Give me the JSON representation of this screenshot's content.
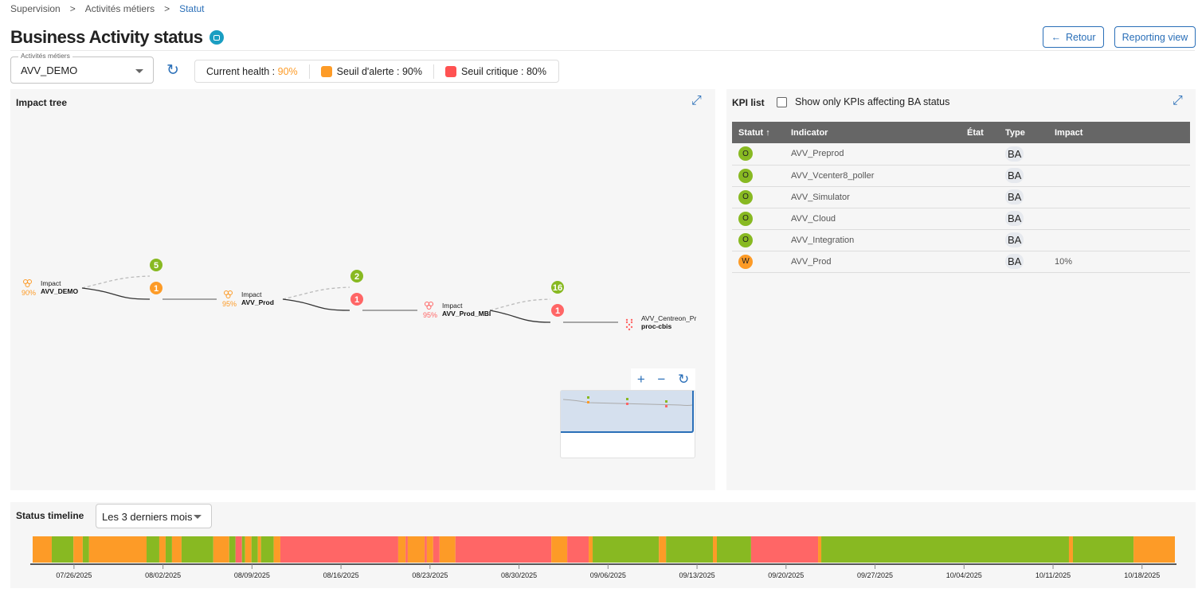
{
  "breadcrumb": [
    "Supervision",
    "Activités métiers",
    "Statut"
  ],
  "page_title": "Business Activity status",
  "buttons": {
    "back": "Retour",
    "reporting": "Reporting view"
  },
  "selector": {
    "label": "Activités métiers",
    "value": "AVV_DEMO"
  },
  "health": {
    "current_label": "Current health : ",
    "current_value": "90%",
    "warning": "Seuil d'alerte : 90%",
    "critical": "Seuil critique : 80%"
  },
  "colors": {
    "ok": "#88b922",
    "warning": "#fd9b27",
    "critical": "#ff6666",
    "accent": "#2a6fb8",
    "health_value": "#fd9b27"
  },
  "impact_tree": {
    "title": "Impact tree",
    "nodes": [
      {
        "type": "Impact",
        "name": "AVV_DEMO",
        "pct": "90%",
        "status": "warning",
        "ok_count": "5",
        "problem_count": "1",
        "problem_status": "warning"
      },
      {
        "type": "Impact",
        "name": "AVV_Prod",
        "pct": "95%",
        "status": "warning",
        "ok_count": "2",
        "problem_count": "1",
        "problem_status": "critical"
      },
      {
        "type": "Impact",
        "name": "AVV_Prod_MBI",
        "pct": "95%",
        "status": "critical",
        "ok_count": "16",
        "problem_count": "1",
        "problem_status": "critical"
      },
      {
        "type": "AVV_Centreon_Pr",
        "name": "proc-cbis",
        "status": "critical"
      }
    ],
    "controls": {
      "zoom_in": "+",
      "zoom_out": "−",
      "reset": "↻"
    }
  },
  "kpi": {
    "title": "KPI list",
    "filter_label": "Show only KPIs affecting BA status",
    "filter_checked": false,
    "columns": [
      "Statut",
      "Indicator",
      "État",
      "Type",
      "Impact"
    ],
    "rows": [
      {
        "status": "O",
        "color": "ok",
        "indicator": "AVV_Preprod",
        "state": "",
        "type": "BA",
        "impact": ""
      },
      {
        "status": "O",
        "color": "ok",
        "indicator": "AVV_Vcenter8_poller",
        "state": "",
        "type": "BA",
        "impact": ""
      },
      {
        "status": "O",
        "color": "ok",
        "indicator": "AVV_Simulator",
        "state": "",
        "type": "BA",
        "impact": ""
      },
      {
        "status": "O",
        "color": "ok",
        "indicator": "AVV_Cloud",
        "state": "",
        "type": "BA",
        "impact": ""
      },
      {
        "status": "O",
        "color": "ok",
        "indicator": "AVV_Integration",
        "state": "",
        "type": "BA",
        "impact": ""
      },
      {
        "status": "W",
        "color": "warning",
        "indicator": "AVV_Prod",
        "state": "",
        "type": "BA",
        "impact": "10%"
      }
    ]
  },
  "timeline": {
    "title": "Status timeline",
    "period": "Les 3 derniers mois",
    "chart_data": {
      "type": "timeline",
      "x_range": [
        "2025-07-22T18:00",
        "2025-10-20T14:00"
      ],
      "ticks": [
        "07/26/2025",
        "08/02/2025",
        "08/09/2025",
        "08/16/2025",
        "08/23/2025",
        "08/30/2025",
        "09/06/2025",
        "09/13/2025",
        "09/20/2025",
        "09/27/2025",
        "10/04/2025",
        "10/11/2025",
        "10/18/2025"
      ],
      "segments": [
        [
          "2025-07-22T18:00",
          "warning"
        ],
        [
          "2025-07-24T06:00",
          "ok"
        ],
        [
          "2025-07-25T23:00",
          "warning"
        ],
        [
          "2025-07-26T16:30",
          "ok"
        ],
        [
          "2025-07-27T04:30",
          "warning"
        ],
        [
          "2025-07-31T17:00",
          "ok"
        ],
        [
          "2025-08-01T17:00",
          "warning"
        ],
        [
          "2025-08-02T05:00",
          "ok"
        ],
        [
          "2025-08-02T17:00",
          "warning"
        ],
        [
          "2025-08-03T11:00",
          "ok"
        ],
        [
          "2025-08-05T23:00",
          "warning"
        ],
        [
          "2025-08-07T05:00",
          "ok"
        ],
        [
          "2025-08-07T17:00",
          "critical"
        ],
        [
          "2025-08-08T05:00",
          "ok"
        ],
        [
          "2025-08-08T11:00",
          "warning"
        ],
        [
          "2025-08-08T23:00",
          "ok"
        ],
        [
          "2025-08-09T11:00",
          "warning"
        ],
        [
          "2025-08-09T17:00",
          "ok"
        ],
        [
          "2025-08-10T17:00",
          "warning"
        ],
        [
          "2025-08-11T05:30",
          "critical"
        ],
        [
          "2025-08-20T12:00",
          "warning"
        ],
        [
          "2025-08-21T02:00",
          "critical"
        ],
        [
          "2025-08-21T06:00",
          "warning"
        ],
        [
          "2025-08-22T14:00",
          "critical"
        ],
        [
          "2025-08-22T18:00",
          "warning"
        ],
        [
          "2025-08-23T06:00",
          "critical"
        ],
        [
          "2025-08-23T18:00",
          "warning"
        ],
        [
          "2025-08-25T00:00",
          "critical"
        ],
        [
          "2025-09-01T13:00",
          "warning"
        ],
        [
          "2025-09-02T19:00",
          "critical"
        ],
        [
          "2025-09-04T11:30",
          "warning"
        ],
        [
          "2025-09-04T19:00",
          "ok"
        ],
        [
          "2025-09-10T00:00",
          "warning"
        ],
        [
          "2025-09-10T13:30",
          "ok"
        ],
        [
          "2025-09-14T06:00",
          "warning"
        ],
        [
          "2025-09-14T13:30",
          "ok"
        ],
        [
          "2025-09-17T06:00",
          "critical"
        ],
        [
          "2025-09-22T12:30",
          "warning"
        ],
        [
          "2025-09-22T18:30",
          "ok"
        ],
        [
          "2025-10-12T06:00",
          "warning"
        ],
        [
          "2025-10-12T13:30",
          "ok"
        ],
        [
          "2025-10-17T08:00",
          "warning"
        ]
      ]
    }
  }
}
